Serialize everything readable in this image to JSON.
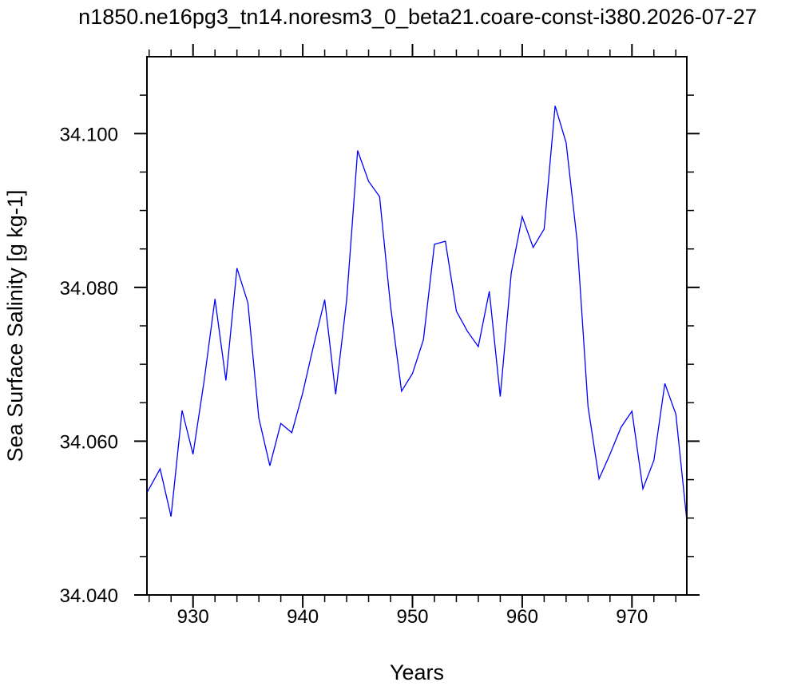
{
  "chart_data": {
    "type": "line",
    "title": "n1850.ne16pg3_tn14.noresm3_0_beta21.coare-const-i380.2026-07-27",
    "xlabel": "Years",
    "ylabel": "Sea Surface Salinity [g kg-1]",
    "xlim": [
      925.8,
      975
    ],
    "ylim": [
      34.04,
      34.11
    ],
    "x_ticks": [
      930,
      940,
      950,
      960,
      970
    ],
    "x_tick_labels": [
      "930",
      "940",
      "950",
      "960",
      "970"
    ],
    "y_ticks": [
      34.04,
      34.06,
      34.08,
      34.1
    ],
    "y_tick_labels": [
      "34.040",
      "34.060",
      "34.080",
      "34.100"
    ],
    "grid": false,
    "series": [
      {
        "color": "#0000ff",
        "x": [
          925.8,
          927,
          928,
          929,
          930,
          931,
          932,
          933,
          934,
          935,
          936,
          937,
          938,
          939,
          940,
          941,
          942,
          943,
          944,
          945,
          946,
          947,
          948,
          949,
          950,
          951,
          952,
          953,
          954,
          955,
          956,
          957,
          958,
          959,
          960,
          961,
          962,
          963,
          964,
          965,
          966,
          967,
          968,
          969,
          970,
          971,
          972,
          973,
          974,
          975
        ],
        "y": [
          34.0533,
          34.0564,
          34.0502,
          34.064,
          34.0583,
          34.0677,
          34.0785,
          34.0679,
          34.0825,
          34.078,
          34.063,
          34.0568,
          34.0623,
          34.0611,
          34.0663,
          34.0725,
          34.0784,
          34.0661,
          34.0784,
          34.0978,
          34.0938,
          34.0918,
          34.0776,
          34.0665,
          34.0688,
          34.0732,
          34.0856,
          34.086,
          34.0769,
          34.0743,
          34.0723,
          34.0795,
          34.0658,
          34.0819,
          34.0892,
          34.0852,
          34.0876,
          34.1036,
          34.0988,
          34.0861,
          34.0645,
          34.0551,
          34.0583,
          34.0618,
          34.0639,
          34.0538,
          34.0575,
          34.0675,
          34.0635,
          34.0497
        ]
      }
    ]
  }
}
